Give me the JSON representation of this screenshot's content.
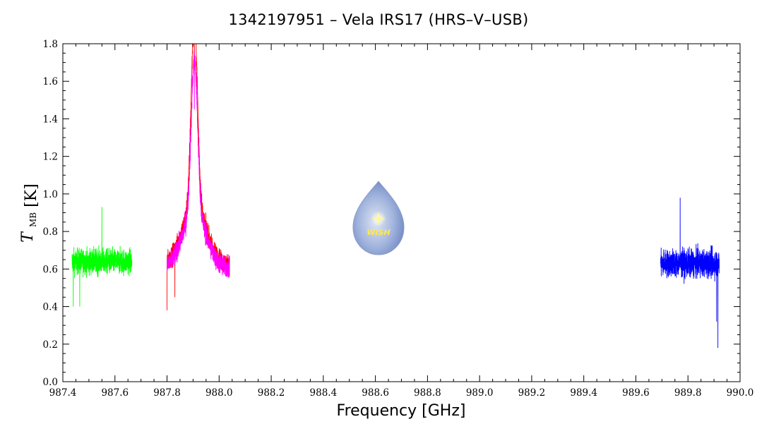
{
  "chart_data": {
    "type": "line",
    "title": "1342197951 – Vela IRS17 (HRS–V–USB)",
    "xlabel": "Frequency [GHz]",
    "ylabel_main": "T",
    "ylabel_sub": "MB",
    "ylabel_unit": "[K]",
    "xlim": [
      987.4,
      990.0
    ],
    "ylim": [
      0.0,
      1.8
    ],
    "x_ticks": [
      "987.4",
      "987.6",
      "987.8",
      "988.0",
      "988.2",
      "988.4",
      "988.6",
      "988.8",
      "989.0",
      "989.2",
      "989.4",
      "989.6",
      "989.8",
      "990.0"
    ],
    "y_ticks": [
      "0.0",
      "0.2",
      "0.4",
      "0.6",
      "0.8",
      "1.0",
      "1.2",
      "1.4",
      "1.6",
      "1.8"
    ],
    "grid": false,
    "series": [
      {
        "color": "#00ff00",
        "x_range": [
          987.435,
          987.665
        ],
        "baseline": 0.64,
        "noise": 0.12,
        "spikes": [
          [
            987.55,
            0.93
          ],
          [
            987.465,
            0.4
          ],
          [
            987.44,
            0.4
          ]
        ]
      },
      {
        "color": "#ff0000",
        "x_range": [
          987.8,
          988.04
        ],
        "baseline": 0.62,
        "noise": 0.1,
        "line_center": 987.905,
        "line_peak": 1.0,
        "line_width": 0.012,
        "wing_amp": 0.32,
        "wing_width": 0.045,
        "spikes": [
          [
            987.905,
            1.63
          ],
          [
            987.8,
            0.38
          ],
          [
            987.83,
            0.45
          ]
        ]
      },
      {
        "color": "#ff00ff",
        "x_range": [
          987.8,
          988.04
        ],
        "baseline": 0.6,
        "noise": 0.1,
        "line_center": 987.905,
        "line_peak": 0.82,
        "line_width": 0.012,
        "wing_amp": 0.3,
        "wing_width": 0.045,
        "spikes": [
          [
            987.905,
            1.45
          ]
        ]
      },
      {
        "color": "#0000ff",
        "x_range": [
          989.695,
          989.92
        ],
        "baseline": 0.63,
        "noise": 0.13,
        "spikes": [
          [
            989.915,
            0.18
          ],
          [
            989.77,
            0.98
          ],
          [
            989.91,
            0.32
          ]
        ]
      }
    ]
  },
  "logo": {
    "text": "WISH"
  }
}
